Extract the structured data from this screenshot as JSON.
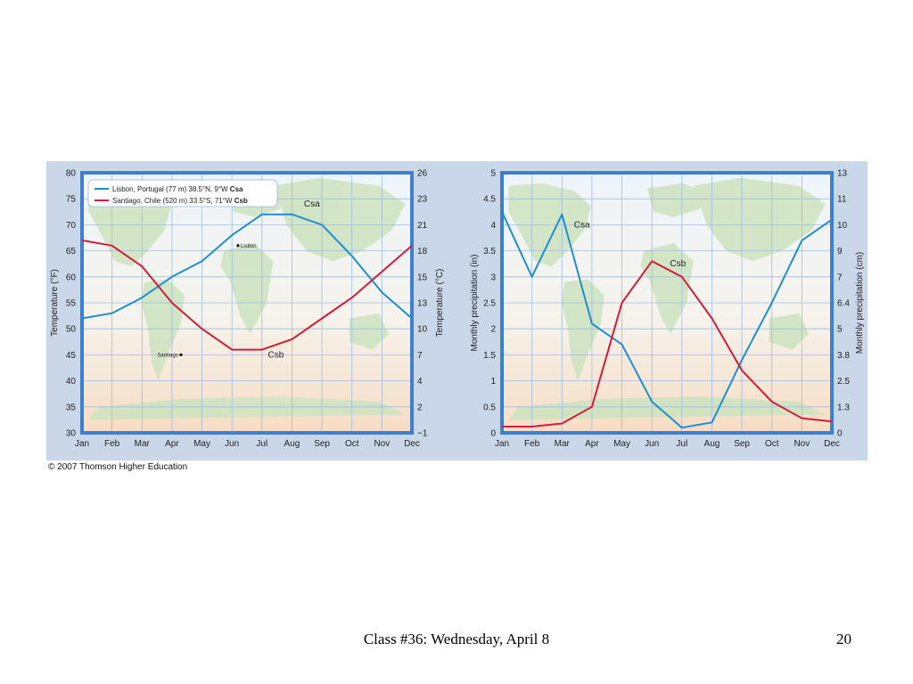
{
  "copyright": "© 2007 Thomson Higher Education",
  "footer": {
    "title": "Class #36: Wednesday, April 8",
    "page": "20"
  },
  "colors": {
    "csa": "#1f8ecf",
    "csb": "#d21d3a",
    "frame": "#3d7fd1",
    "grid": "#9fbde0"
  },
  "chart_data": [
    {
      "type": "line",
      "categories": [
        "Jan",
        "Feb",
        "Mar",
        "Apr",
        "May",
        "Jun",
        "Jul",
        "Aug",
        "Sep",
        "Oct",
        "Nov",
        "Dec"
      ],
      "ylabel": "Temperature (°F)",
      "ylim": [
        30,
        80
      ],
      "yticks": [
        "30",
        "35",
        "40",
        "45",
        "50",
        "55",
        "60",
        "65",
        "70",
        "75",
        "80"
      ],
      "y2label": "Temperature (°C)",
      "y2ticks": [
        "−1",
        "2",
        "4",
        "7",
        "10",
        "13",
        "15",
        "18",
        "21",
        "23",
        "26"
      ],
      "grid": true,
      "legend_position": "top-left",
      "legend": [
        {
          "series": 0,
          "text": "Lisbon, Portugal (77 m) 38.5°N, 9°W ",
          "code": "Csa"
        },
        {
          "series": 1,
          "text": "Santiago, Chile (520 m) 33.5°S, 71°W ",
          "code": "Csb"
        }
      ],
      "series": [
        {
          "values": [
            52,
            53,
            56,
            60,
            63,
            68,
            72,
            72,
            70,
            64,
            57,
            52
          ],
          "label": "Csa",
          "label_at": [
            7.4,
            73.5
          ]
        },
        {
          "values": [
            67,
            66,
            62,
            55,
            50,
            46,
            46,
            48,
            52,
            56,
            61,
            66
          ],
          "label": "Csb",
          "label_at": [
            6.2,
            44.5
          ]
        }
      ],
      "markers": [
        {
          "name": "Lisbon",
          "x": 5.2,
          "y": 66
        },
        {
          "name": "Santiago",
          "x": 3.3,
          "y": 45
        }
      ]
    },
    {
      "type": "line",
      "categories": [
        "Jan",
        "Feb",
        "Mar",
        "Apr",
        "May",
        "Jun",
        "Jul",
        "Aug",
        "Sep",
        "Oct",
        "Nov",
        "Dec"
      ],
      "ylabel": "Monthly precipitation (in)",
      "ylim": [
        0,
        5
      ],
      "yticks": [
        "0",
        "0.5",
        "1",
        "1.5",
        "2",
        "2.5",
        "3",
        "3.5",
        "4",
        "4.5",
        "5"
      ],
      "y2label": "Monthly precipitation (cm)",
      "y2ticks": [
        "0",
        "1.3",
        "2.5",
        "3.8",
        "5",
        "6.4",
        "7",
        "9",
        "10",
        "11",
        "13"
      ],
      "grid": true,
      "series": [
        {
          "values": [
            4.25,
            3.0,
            4.2,
            2.1,
            1.7,
            0.6,
            0.1,
            0.2,
            1.4,
            2.5,
            3.7,
            4.1
          ],
          "label": "Csa",
          "label_at": [
            2.4,
            3.95
          ]
        },
        {
          "values": [
            0.12,
            0.12,
            0.18,
            0.5,
            2.5,
            3.3,
            3.0,
            2.2,
            1.2,
            0.6,
            0.28,
            0.22
          ],
          "label": "Csb",
          "label_at": [
            5.6,
            3.2
          ]
        }
      ]
    }
  ]
}
